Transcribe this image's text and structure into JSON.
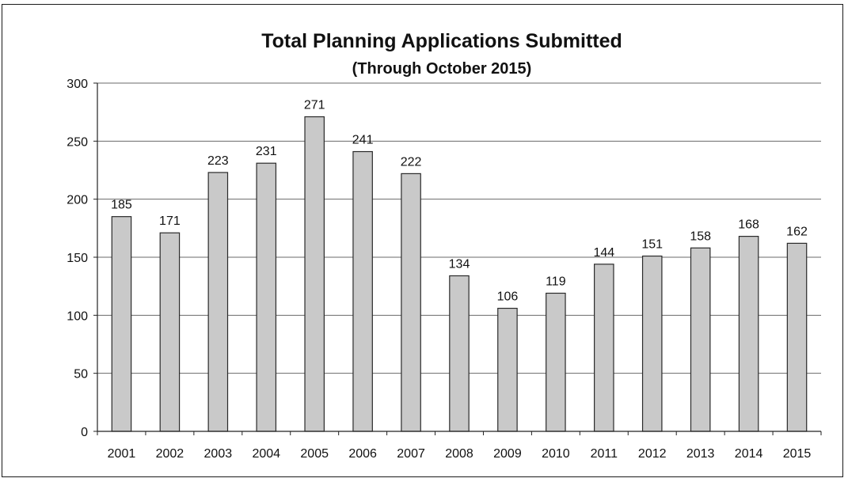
{
  "chart_data": {
    "type": "bar",
    "title": "Total Planning Applications Submitted",
    "subtitle": "(Through October 2015)",
    "xlabel": "",
    "ylabel": "",
    "categories": [
      "2001",
      "2002",
      "2003",
      "2004",
      "2005",
      "2006",
      "2007",
      "2008",
      "2009",
      "2010",
      "2011",
      "2012",
      "2013",
      "2014",
      "2015"
    ],
    "values": [
      185,
      171,
      223,
      231,
      271,
      241,
      222,
      134,
      106,
      119,
      144,
      151,
      158,
      168,
      162
    ],
    "ylim": [
      0,
      300
    ],
    "yticks": [
      "0",
      "50",
      "100",
      "150",
      "200",
      "250",
      "300"
    ],
    "grid": true,
    "legend": "none",
    "data_labels": true,
    "colors": {
      "bar_fill": "#c9c9c9",
      "bar_stroke": "#2a2a2a",
      "gridline": "#6a6a6a",
      "axis": "#222222"
    }
  }
}
